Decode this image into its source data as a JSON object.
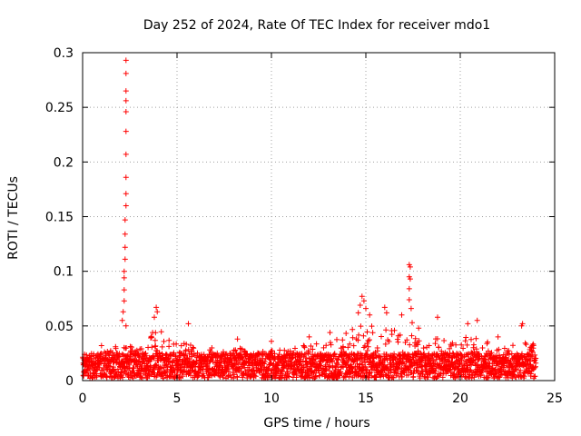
{
  "chart_data": {
    "type": "scatter",
    "title": "Day 252 of 2024, Rate Of TEC Index for receiver mdo1",
    "xlabel": "GPS time / hours",
    "ylabel": "ROTI / TECUs",
    "xlim": [
      0,
      25
    ],
    "ylim": [
      0,
      0.3
    ],
    "x_ticks": [
      0,
      5,
      10,
      15,
      20,
      25
    ],
    "y_ticks": [
      0,
      0.05,
      0.1,
      0.15,
      0.2,
      0.25,
      0.3
    ],
    "x_tick_labels": [
      "0",
      "5",
      "10",
      "15",
      "20",
      "25"
    ],
    "y_tick_labels": [
      "0",
      "0.05",
      "0.1",
      "0.15",
      "0.2",
      "0.25",
      "0.3"
    ],
    "grid": true,
    "marker": "+",
    "color": "#ff0000",
    "data_range_hours": [
      0,
      24
    ],
    "baseline_band": [
      0.002,
      0.025
    ],
    "series": [
      {
        "name": "ROTI",
        "notable_points": [
          {
            "x": 2.3,
            "y": 0.293
          },
          {
            "x": 2.3,
            "y": 0.281
          },
          {
            "x": 2.3,
            "y": 0.265
          },
          {
            "x": 2.3,
            "y": 0.256
          },
          {
            "x": 2.3,
            "y": 0.246
          },
          {
            "x": 2.3,
            "y": 0.228
          },
          {
            "x": 2.3,
            "y": 0.207
          },
          {
            "x": 2.3,
            "y": 0.186
          },
          {
            "x": 2.3,
            "y": 0.171
          },
          {
            "x": 2.3,
            "y": 0.16
          },
          {
            "x": 2.25,
            "y": 0.147
          },
          {
            "x": 2.25,
            "y": 0.134
          },
          {
            "x": 2.25,
            "y": 0.122
          },
          {
            "x": 2.25,
            "y": 0.111
          },
          {
            "x": 2.2,
            "y": 0.1
          },
          {
            "x": 2.2,
            "y": 0.094
          },
          {
            "x": 2.2,
            "y": 0.083
          },
          {
            "x": 2.2,
            "y": 0.073
          },
          {
            "x": 2.15,
            "y": 0.063
          },
          {
            "x": 2.1,
            "y": 0.055
          },
          {
            "x": 2.3,
            "y": 0.05
          },
          {
            "x": 17.3,
            "y": 0.106
          },
          {
            "x": 17.35,
            "y": 0.104
          },
          {
            "x": 17.3,
            "y": 0.095
          },
          {
            "x": 17.35,
            "y": 0.093
          },
          {
            "x": 17.3,
            "y": 0.084
          },
          {
            "x": 17.3,
            "y": 0.074
          },
          {
            "x": 17.4,
            "y": 0.066
          },
          {
            "x": 17.45,
            "y": 0.053
          },
          {
            "x": 14.8,
            "y": 0.077
          },
          {
            "x": 14.9,
            "y": 0.073
          },
          {
            "x": 14.7,
            "y": 0.069
          },
          {
            "x": 15.0,
            "y": 0.066
          },
          {
            "x": 14.6,
            "y": 0.062
          },
          {
            "x": 15.2,
            "y": 0.06
          },
          {
            "x": 16.0,
            "y": 0.067
          },
          {
            "x": 16.1,
            "y": 0.062
          },
          {
            "x": 3.9,
            "y": 0.067
          },
          {
            "x": 3.95,
            "y": 0.063
          },
          {
            "x": 3.8,
            "y": 0.058
          },
          {
            "x": 18.8,
            "y": 0.058
          },
          {
            "x": 20.4,
            "y": 0.052
          },
          {
            "x": 20.9,
            "y": 0.055
          },
          {
            "x": 23.3,
            "y": 0.052
          },
          {
            "x": 23.25,
            "y": 0.05
          },
          {
            "x": 13.1,
            "y": 0.044
          },
          {
            "x": 5.6,
            "y": 0.052
          },
          {
            "x": 10.0,
            "y": 0.036
          },
          {
            "x": 8.2,
            "y": 0.038
          },
          {
            "x": 12.0,
            "y": 0.04
          },
          {
            "x": 16.9,
            "y": 0.06
          },
          {
            "x": 17.8,
            "y": 0.048
          },
          {
            "x": 0.1,
            "y": 0.024
          },
          {
            "x": 1.0,
            "y": 0.032
          },
          {
            "x": 22.0,
            "y": 0.04
          }
        ],
        "activity_envelope": [
          {
            "x": 0,
            "y": 0.022
          },
          {
            "x": 1,
            "y": 0.025
          },
          {
            "x": 2,
            "y": 0.035
          },
          {
            "x": 2.5,
            "y": 0.045
          },
          {
            "x": 3,
            "y": 0.03
          },
          {
            "x": 4,
            "y": 0.05
          },
          {
            "x": 5,
            "y": 0.035
          },
          {
            "x": 6,
            "y": 0.032
          },
          {
            "x": 7,
            "y": 0.03
          },
          {
            "x": 8,
            "y": 0.032
          },
          {
            "x": 9,
            "y": 0.025
          },
          {
            "x": 10,
            "y": 0.028
          },
          {
            "x": 11,
            "y": 0.028
          },
          {
            "x": 12,
            "y": 0.035
          },
          {
            "x": 13,
            "y": 0.035
          },
          {
            "x": 14,
            "y": 0.045
          },
          {
            "x": 15,
            "y": 0.06
          },
          {
            "x": 16,
            "y": 0.05
          },
          {
            "x": 17,
            "y": 0.045
          },
          {
            "x": 18,
            "y": 0.04
          },
          {
            "x": 19,
            "y": 0.04
          },
          {
            "x": 20,
            "y": 0.04
          },
          {
            "x": 21,
            "y": 0.04
          },
          {
            "x": 22,
            "y": 0.03
          },
          {
            "x": 23,
            "y": 0.035
          },
          {
            "x": 24,
            "y": 0.035
          }
        ]
      }
    ]
  }
}
